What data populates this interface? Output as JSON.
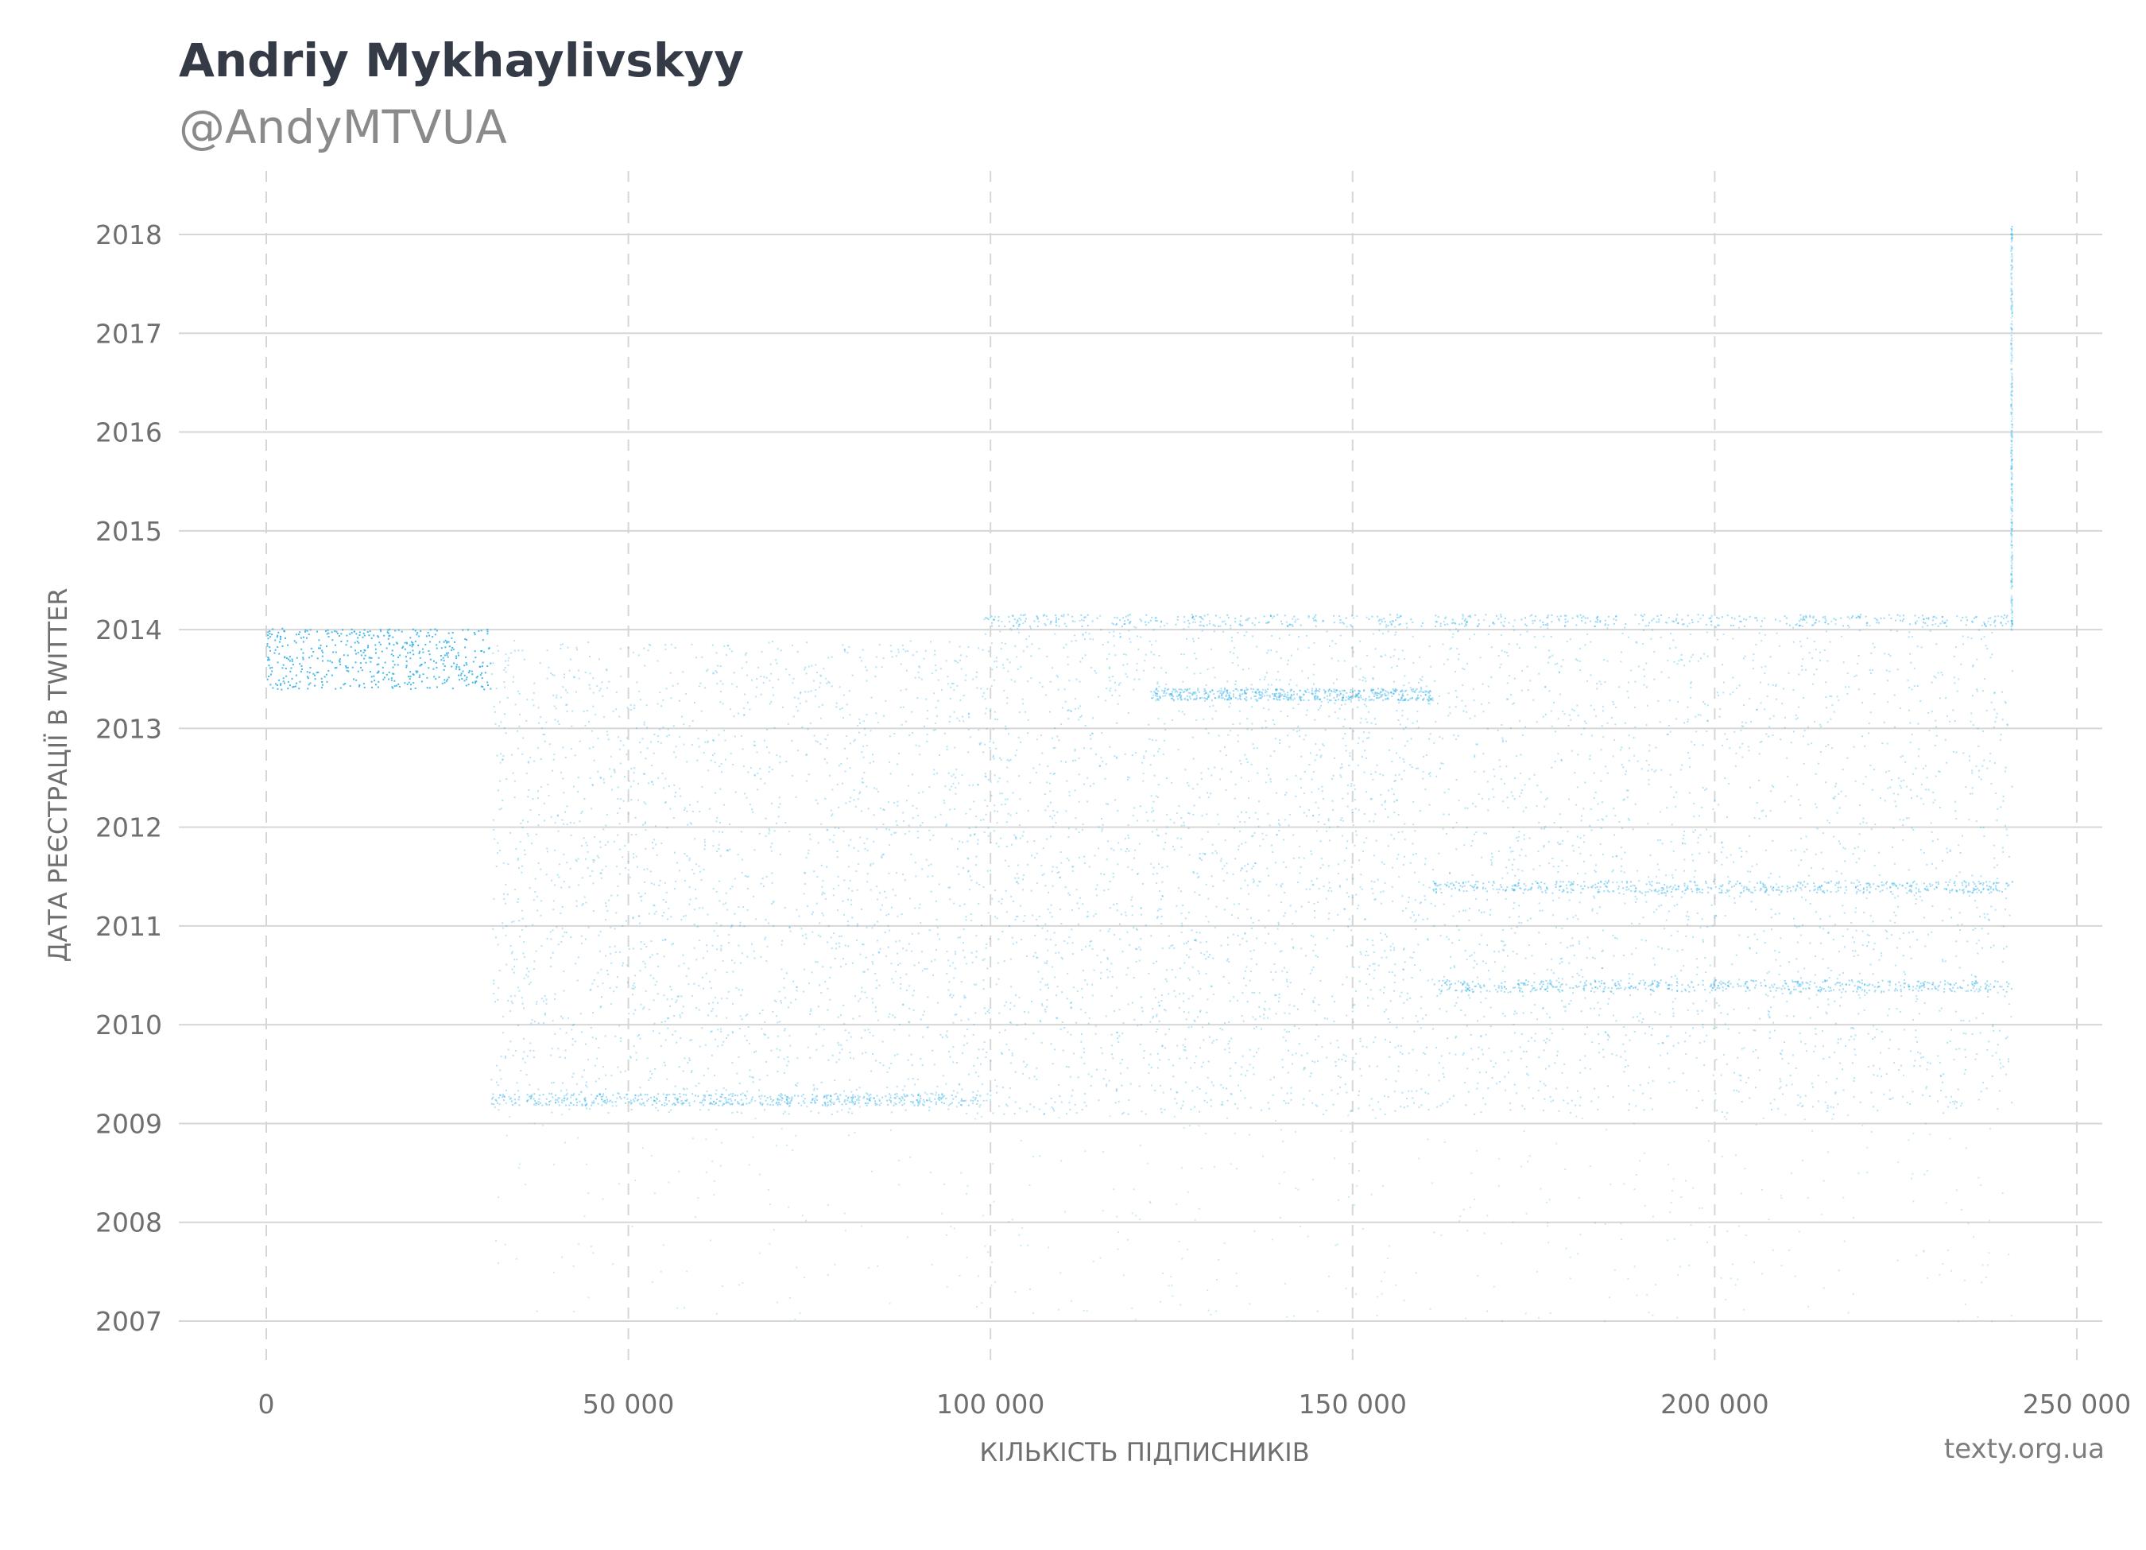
{
  "header": {
    "name": "Andriy Mykhaylivskyy",
    "handle": "@AndyMTVUA"
  },
  "footer": {
    "source": "texty.org.ua"
  },
  "colors": {
    "points": "#29aee6",
    "grid": "#d6d6d6",
    "text": "#6f6f6f",
    "title": "#353a47"
  },
  "chart_data": {
    "type": "scatter",
    "xlabel": "КІЛЬКІСТЬ ПІДПИСНИКІВ",
    "ylabel": "ДАТА РЕЄСТРАЦІЇ В TWITTER",
    "xlim": [
      -12000,
      252000
    ],
    "ylim": [
      2006.4,
      2018.7
    ],
    "x_ticks": [
      0,
      50000,
      100000,
      150000,
      200000,
      250000
    ],
    "x_tick_labels": [
      "0",
      "50 000",
      "100 000",
      "150 000",
      "200 000",
      "250 000"
    ],
    "y_ticks": [
      2007,
      2008,
      2009,
      2010,
      2011,
      2012,
      2013,
      2014,
      2015,
      2016,
      2017,
      2018
    ],
    "y_tick_labels": [
      "2007",
      "2008",
      "2009",
      "2010",
      "2011",
      "2012",
      "2013",
      "2014",
      "2015",
      "2016",
      "2017",
      "2018"
    ],
    "grid": {
      "horizontal": "solid",
      "vertical": "dashed"
    },
    "series": [
      {
        "regions": [
          {
            "x": [
              0,
              31000
            ],
            "y": [
              2013.4,
              2014.02
            ],
            "density": "high"
          },
          {
            "x": [
              31000,
              99000
            ],
            "y": [
              2009.1,
              2013.9
            ],
            "density": "medium"
          },
          {
            "x": [
              99000,
              161000
            ],
            "y": [
              2009.1,
              2014.15
            ],
            "density": "medium"
          },
          {
            "x": [
              161000,
              241000
            ],
            "y": [
              2009.1,
              2014.15
            ],
            "density": "medium"
          },
          {
            "x": [
              31000,
              241000
            ],
            "y": [
              2007.0,
              2009.1
            ],
            "density": "low"
          },
          {
            "x": [
              240800,
              241000
            ],
            "y": [
              2014.0,
              2018.1
            ],
            "density": "low"
          }
        ],
        "bands": [
          {
            "x": [
              31000,
              99000
            ],
            "y": 2009.25
          },
          {
            "x": [
              161000,
              241000
            ],
            "y": 2011.4
          },
          {
            "x": [
              161000,
              241000
            ],
            "y": 2010.4
          },
          {
            "x": [
              99000,
              241000
            ],
            "y": 2014.1
          },
          {
            "x": [
              122000,
              161000
            ],
            "y": 2013.35
          }
        ]
      }
    ]
  }
}
